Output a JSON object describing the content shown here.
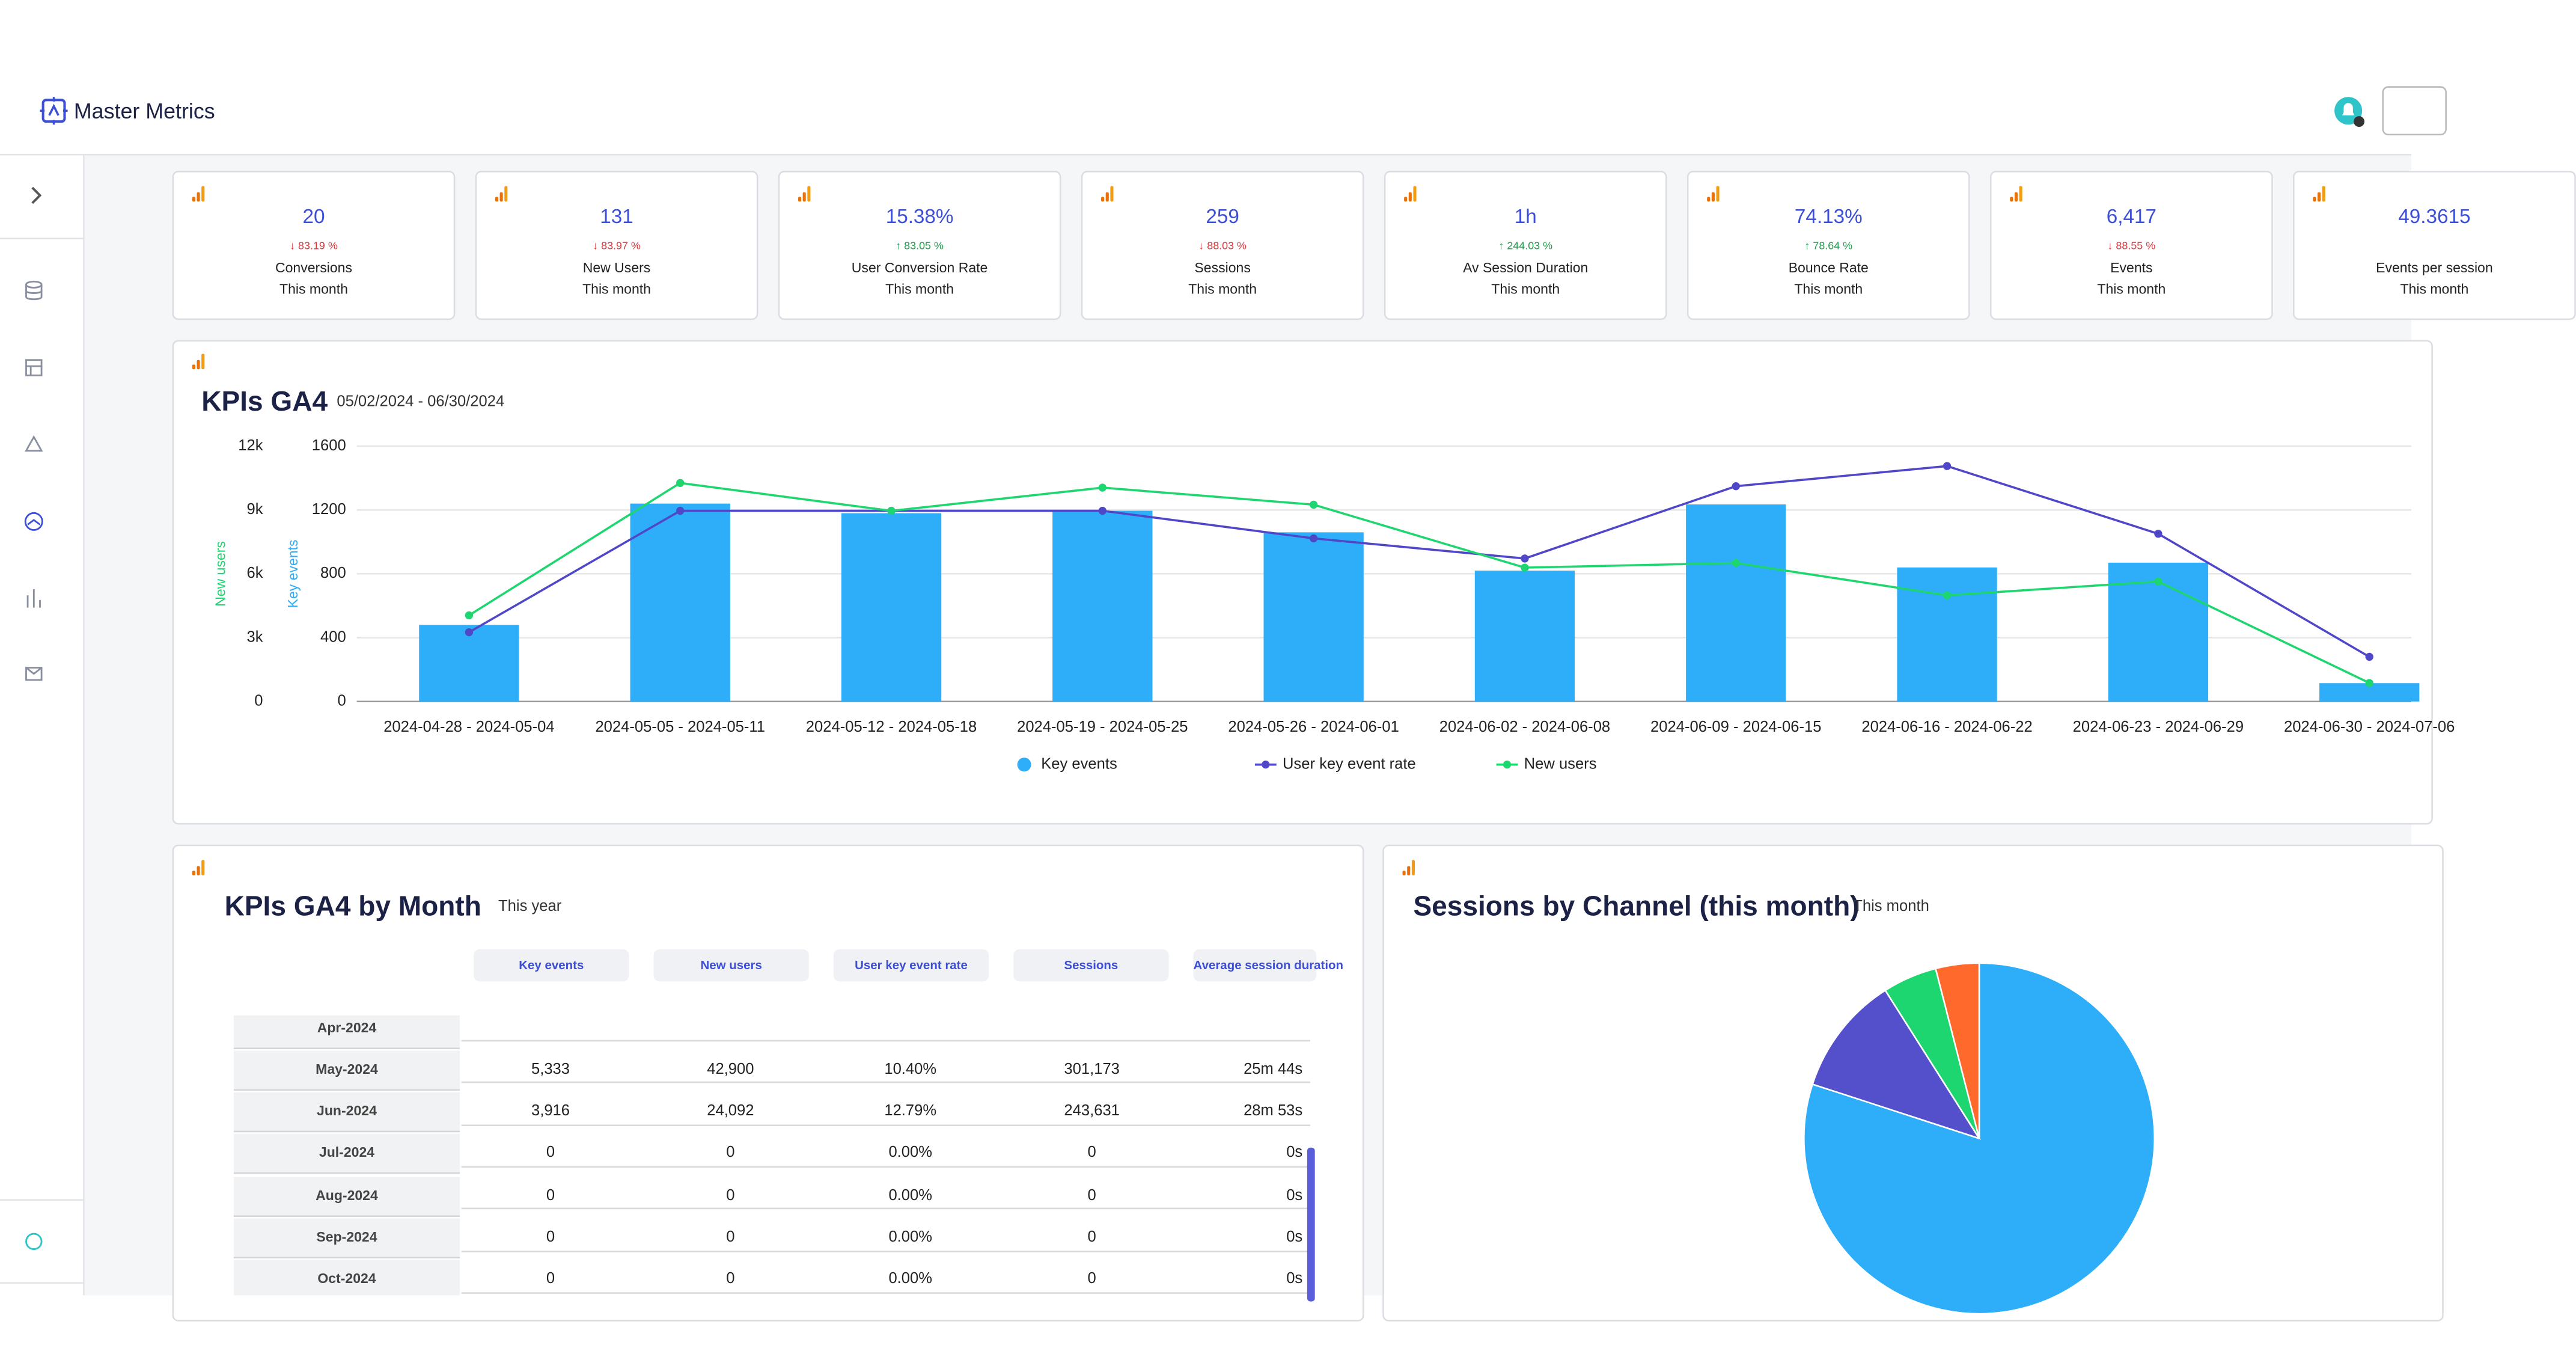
{
  "header": {
    "brand": "Master Metrics"
  },
  "kpi_cards": [
    {
      "value": "20",
      "change": "↓ 83.19 %",
      "direction": "down",
      "label": "Conversions",
      "period": "This month"
    },
    {
      "value": "131",
      "change": "↓ 83.97 %",
      "direction": "down",
      "label": "New Users",
      "period": "This month"
    },
    {
      "value": "15.38%",
      "change": "↑ 83.05 %",
      "direction": "up",
      "label": "User Conversion Rate",
      "period": "This month"
    },
    {
      "value": "259",
      "change": "↓ 88.03 %",
      "direction": "down",
      "label": "Sessions",
      "period": "This month"
    },
    {
      "value": "1h",
      "change": "↑ 244.03 %",
      "direction": "up",
      "label": "Av Session Duration",
      "period": "This month"
    },
    {
      "value": "74.13%",
      "change": "↑ 78.64 %",
      "direction": "up",
      "label": "Bounce Rate",
      "period": "This month"
    },
    {
      "value": "6,417",
      "change": "↓ 88.55 %",
      "direction": "down",
      "label": "Events",
      "period": "This month"
    },
    {
      "value": "49.3615",
      "label": "Events per session",
      "period": "This month"
    }
  ],
  "chart_data": [
    {
      "type": "combo",
      "title": "KPIs GA4",
      "subtitle": "05/02/2024 - 06/30/2024",
      "ylabel": "New users",
      "y2label": "Key events",
      "categories": [
        "2024-04-28 - 2024-05-04",
        "2024-05-05 - 2024-05-11",
        "2024-05-12 - 2024-05-18",
        "2024-05-19 - 2024-05-25",
        "2024-05-26 - 2024-06-01",
        "2024-06-02 - 2024-06-08",
        "2024-06-09 - 2024-06-15",
        "2024-06-16 - 2024-06-22",
        "2024-06-23 - 2024-06-29",
        "2024-06-30 - 2024-07-06"
      ],
      "ylim": [
        0,
        12000
      ],
      "yticks": [
        0,
        {
          "value": 3000,
          "label": "3k"
        },
        {
          "value": 6000,
          "label": "6k"
        },
        {
          "value": 9000,
          "label": "9k"
        },
        {
          "value": 12000,
          "label": "12k"
        }
      ],
      "y2lim": [
        0,
        1600
      ],
      "y2ticks": [
        0,
        400,
        800,
        1200,
        1600
      ],
      "grid": true,
      "series": [
        {
          "name": "Key events",
          "type": "bar",
          "axis": "y2",
          "color": "#2eaef9",
          "values": [
            480,
            1240,
            1180,
            1195,
            1060,
            820,
            1235,
            840,
            870,
            115
          ]
        },
        {
          "name": "User key event rate",
          "type": "line",
          "axis": "y2",
          "color": "#5046c8",
          "values": [
            434,
            1195,
            1195,
            1195,
            1022,
            896,
            1349,
            1475,
            1051,
            280
          ]
        },
        {
          "name": "New users",
          "type": "line",
          "axis": "y",
          "color": "#1ed66f",
          "values": [
            4050,
            10270,
            8960,
            10050,
            9250,
            6290,
            6510,
            4990,
            5640,
            870
          ]
        }
      ]
    },
    {
      "type": "pie",
      "title": "Sessions by Channel (this month)",
      "subtitle": "This month",
      "values": [
        80,
        11,
        5,
        4
      ],
      "colors": [
        "#2eaef9",
        "#5450cc",
        "#1ed66f",
        "#ff6a2c"
      ]
    }
  ],
  "month_table": {
    "title": "KPIs GA4 by Month",
    "subtitle": "This year",
    "columns": [
      "Key events",
      "New users",
      "User key event rate",
      "Sessions",
      "Average session duration"
    ],
    "rows": [
      {
        "month": "Apr-2024"
      },
      {
        "month": "May-2024",
        "cells": [
          "5,333",
          "42,900",
          "10.40%",
          "301,173",
          "25m 44s"
        ]
      },
      {
        "month": "Jun-2024",
        "cells": [
          "3,916",
          "24,092",
          "12.79%",
          "243,631",
          "28m 53s"
        ]
      },
      {
        "month": "Jul-2024",
        "cells": [
          "0",
          "0",
          "0.00%",
          "0",
          "0s"
        ]
      },
      {
        "month": "Aug-2024",
        "cells": [
          "0",
          "0",
          "0.00%",
          "0",
          "0s"
        ]
      },
      {
        "month": "Sep-2024",
        "cells": [
          "0",
          "0",
          "0.00%",
          "0",
          "0s"
        ]
      },
      {
        "month": "Oct-2024",
        "cells": [
          "0",
          "0",
          "0.00%",
          "0",
          "0s"
        ]
      }
    ]
  }
}
